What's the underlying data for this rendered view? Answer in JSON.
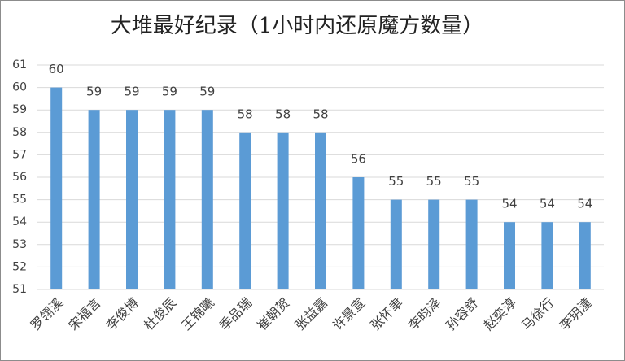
{
  "chart_data": {
    "type": "bar",
    "title": "大堆最好纪录（1小时内还原魔方数量）",
    "categories": [
      "罗翎溪",
      "宋福言",
      "李俊博",
      "杜俊辰",
      "王锦曦",
      "季品瑞",
      "崔朝贺",
      "张益嘉",
      "许景宣",
      "张怀聿",
      "李昀泽",
      "孙容舒",
      "赵奕淳",
      "马徐行",
      "李玥潼"
    ],
    "values": [
      60,
      59,
      59,
      59,
      59,
      58,
      58,
      58,
      56,
      55,
      55,
      55,
      54,
      54,
      54
    ],
    "color": "#5b9bd5",
    "ylim": [
      51,
      61
    ],
    "yticks": [
      51,
      52,
      53,
      54,
      55,
      56,
      57,
      58,
      59,
      60,
      61
    ],
    "grid": true
  }
}
